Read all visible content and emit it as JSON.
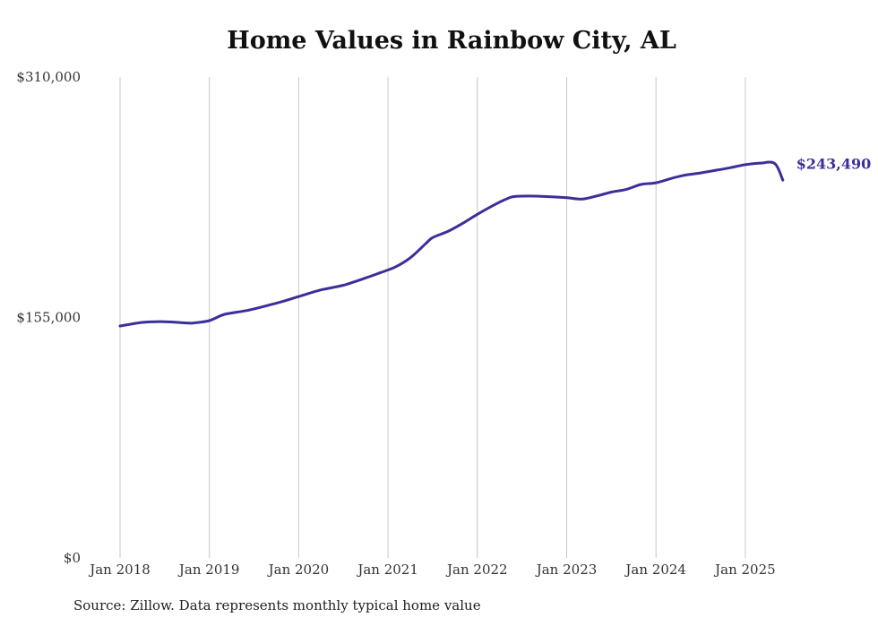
{
  "chart_data": {
    "type": "line",
    "title": "Home Values in Rainbow City, AL",
    "source": "Source: Zillow. Data represents monthly typical home value",
    "xlabel": "",
    "ylabel": "",
    "ylim": [
      0,
      310000
    ],
    "y_ticks": [
      {
        "value": 0,
        "label": "$0"
      },
      {
        "value": 155000,
        "label": "$155,000"
      },
      {
        "value": 310000,
        "label": "$310,000"
      }
    ],
    "x_ticks": [
      {
        "value": 2018,
        "label": "Jan 2018"
      },
      {
        "value": 2019,
        "label": "Jan 2019"
      },
      {
        "value": 2020,
        "label": "Jan 2020"
      },
      {
        "value": 2021,
        "label": "Jan 2021"
      },
      {
        "value": 2022,
        "label": "Jan 2022"
      },
      {
        "value": 2023,
        "label": "Jan 2023"
      },
      {
        "value": 2024,
        "label": "Jan 2024"
      },
      {
        "value": 2025,
        "label": "Jan 2025"
      }
    ],
    "xlim": [
      2018,
      2025.42
    ],
    "grid": "vertical",
    "line_color": "#3b2f99",
    "end_label": "$243,490",
    "series": [
      {
        "x": [
          2018.0,
          2018.25,
          2018.5,
          2018.75,
          2018.83,
          2019.0,
          2019.17,
          2019.42,
          2019.67,
          2019.83,
          2020.0,
          2020.25,
          2020.5,
          2020.75,
          2020.92,
          2021.08,
          2021.25,
          2021.42,
          2021.5,
          2021.67,
          2021.83,
          2022.0,
          2022.17,
          2022.33,
          2022.42,
          2022.58,
          2022.75,
          2023.0,
          2023.17,
          2023.33,
          2023.5,
          2023.67,
          2023.83,
          2024.0,
          2024.17,
          2024.33,
          2024.5,
          2024.67,
          2024.83,
          2025.0,
          2025.17,
          2025.33,
          2025.42
        ],
        "values": [
          149500,
          151800,
          152300,
          151400,
          151500,
          153000,
          157000,
          159500,
          163000,
          165500,
          168500,
          172800,
          175800,
          180500,
          184000,
          187500,
          193500,
          202500,
          206500,
          210500,
          215500,
          221500,
          227000,
          231500,
          233000,
          233300,
          233000,
          232200,
          231300,
          233200,
          235800,
          237600,
          240700,
          241800,
          244600,
          246800,
          248200,
          249900,
          251500,
          253500,
          254500,
          254200,
          243490
        ]
      }
    ]
  }
}
